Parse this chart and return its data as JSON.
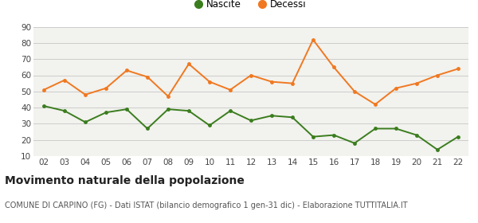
{
  "years": [
    "02",
    "03",
    "04",
    "05",
    "06",
    "07",
    "08",
    "09",
    "10",
    "11",
    "12",
    "13",
    "14",
    "15",
    "16",
    "17",
    "18",
    "19",
    "20",
    "21",
    "22"
  ],
  "nascite": [
    41,
    38,
    31,
    37,
    39,
    27,
    39,
    38,
    29,
    38,
    32,
    35,
    34,
    22,
    23,
    18,
    27,
    27,
    23,
    14,
    22
  ],
  "decessi": [
    51,
    57,
    48,
    52,
    63,
    59,
    47,
    67,
    56,
    51,
    60,
    56,
    55,
    82,
    65,
    50,
    42,
    52,
    55,
    60,
    64
  ],
  "nascite_color": "#3a7d1e",
  "decessi_color": "#f07820",
  "bg_color": "#f2f2ee",
  "plot_bg_color": "#f2f2ee",
  "grid_color": "#cccccc",
  "ylim": [
    10,
    90
  ],
  "yticks": [
    10,
    20,
    30,
    40,
    50,
    60,
    70,
    80,
    90
  ],
  "title": "Movimento naturale della popolazione",
  "subtitle": "COMUNE DI CARPINO (FG) - Dati ISTAT (bilancio demografico 1 gen-31 dic) - Elaborazione TUTTITALIA.IT",
  "legend_nascite": "Nascite",
  "legend_decessi": "Decessi",
  "title_fontsize": 10,
  "subtitle_fontsize": 7,
  "tick_fontsize": 7.5,
  "legend_fontsize": 8.5
}
